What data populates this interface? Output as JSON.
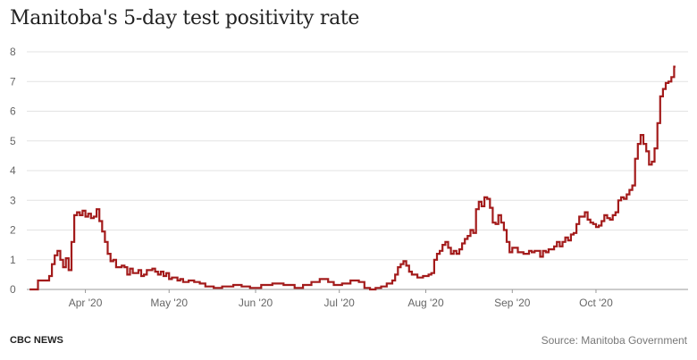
{
  "header": {
    "title": "Manitoba's 5-day test positivity rate"
  },
  "footer": {
    "brand": "CBC NEWS",
    "source": "Source: Manitoba Government"
  },
  "chart_data": {
    "type": "line",
    "step": true,
    "title": "Manitoba's 5-day test positivity rate",
    "xlabel": "",
    "ylabel": "",
    "ylim": [
      0,
      8
    ],
    "yticks": [
      0,
      1,
      2,
      3,
      4,
      5,
      6,
      7,
      8
    ],
    "xlim": [
      "2020-03-11",
      "2020-11-03"
    ],
    "xticks": [
      {
        "label": "Apr '20",
        "date": "2020-04-01"
      },
      {
        "label": "May '20",
        "date": "2020-05-01"
      },
      {
        "label": "Jun '20",
        "date": "2020-06-01"
      },
      {
        "label": "Jul '20",
        "date": "2020-07-01"
      },
      {
        "label": "Aug '20",
        "date": "2020-08-01"
      },
      {
        "label": "Sep '20",
        "date": "2020-09-01"
      },
      {
        "label": "Oct '20",
        "date": "2020-10-01"
      }
    ],
    "grid": true,
    "line_color": "#a31b1b",
    "series": [
      {
        "x": [
          "2020-03-12",
          "2020-03-15",
          "2020-03-19",
          "2020-03-20",
          "2020-03-21",
          "2020-03-22",
          "2020-03-23",
          "2020-03-24",
          "2020-03-25",
          "2020-03-26",
          "2020-03-27",
          "2020-03-28",
          "2020-03-29",
          "2020-03-30",
          "2020-03-31",
          "2020-04-01",
          "2020-04-02",
          "2020-04-03",
          "2020-04-04",
          "2020-04-05",
          "2020-04-06",
          "2020-04-07",
          "2020-04-08",
          "2020-04-09",
          "2020-04-10",
          "2020-04-11",
          "2020-04-12",
          "2020-04-13",
          "2020-04-14",
          "2020-04-15",
          "2020-04-16",
          "2020-04-17",
          "2020-04-18",
          "2020-04-20",
          "2020-04-21",
          "2020-04-22",
          "2020-04-23",
          "2020-04-25",
          "2020-04-26",
          "2020-04-27",
          "2020-04-28",
          "2020-04-29",
          "2020-04-30",
          "2020-05-01",
          "2020-05-02",
          "2020-05-04",
          "2020-05-05",
          "2020-05-06",
          "2020-05-08",
          "2020-05-10",
          "2020-05-12",
          "2020-05-14",
          "2020-05-17",
          "2020-05-20",
          "2020-05-24",
          "2020-05-27",
          "2020-05-30",
          "2020-06-03",
          "2020-06-07",
          "2020-06-11",
          "2020-06-15",
          "2020-06-18",
          "2020-06-21",
          "2020-06-24",
          "2020-06-27",
          "2020-06-29",
          "2020-07-02",
          "2020-07-05",
          "2020-07-08",
          "2020-07-10",
          "2020-07-12",
          "2020-07-14",
          "2020-07-16",
          "2020-07-18",
          "2020-07-20",
          "2020-07-21",
          "2020-07-22",
          "2020-07-23",
          "2020-07-24",
          "2020-07-25",
          "2020-07-26",
          "2020-07-27",
          "2020-07-29",
          "2020-07-31",
          "2020-08-02",
          "2020-08-03",
          "2020-08-04",
          "2020-08-05",
          "2020-08-06",
          "2020-08-07",
          "2020-08-08",
          "2020-08-09",
          "2020-08-10",
          "2020-08-11",
          "2020-08-12",
          "2020-08-13",
          "2020-08-14",
          "2020-08-15",
          "2020-08-16",
          "2020-08-17",
          "2020-08-18",
          "2020-08-19",
          "2020-08-20",
          "2020-08-21",
          "2020-08-22",
          "2020-08-23",
          "2020-08-24",
          "2020-08-25",
          "2020-08-26",
          "2020-08-27",
          "2020-08-28",
          "2020-08-29",
          "2020-08-30",
          "2020-08-31",
          "2020-09-01",
          "2020-09-03",
          "2020-09-05",
          "2020-09-07",
          "2020-09-08",
          "2020-09-09",
          "2020-09-11",
          "2020-09-12",
          "2020-09-13",
          "2020-09-14",
          "2020-09-16",
          "2020-09-17",
          "2020-09-18",
          "2020-09-19",
          "2020-09-20",
          "2020-09-21",
          "2020-09-22",
          "2020-09-23",
          "2020-09-24",
          "2020-09-25",
          "2020-09-27",
          "2020-09-28",
          "2020-09-29",
          "2020-09-30",
          "2020-10-01",
          "2020-10-02",
          "2020-10-03",
          "2020-10-04",
          "2020-10-05",
          "2020-10-06",
          "2020-10-07",
          "2020-10-08",
          "2020-10-09",
          "2020-10-10",
          "2020-10-11",
          "2020-10-12",
          "2020-10-13",
          "2020-10-14",
          "2020-10-15",
          "2020-10-16",
          "2020-10-17",
          "2020-10-18",
          "2020-10-19",
          "2020-10-20",
          "2020-10-21",
          "2020-10-22",
          "2020-10-23",
          "2020-10-24",
          "2020-10-25",
          "2020-10-26",
          "2020-10-27",
          "2020-10-28",
          "2020-10-29"
        ],
        "y": [
          0,
          0.3,
          0.45,
          0.85,
          1.15,
          1.3,
          1.0,
          0.75,
          1.05,
          0.65,
          1.6,
          2.5,
          2.6,
          2.5,
          2.65,
          2.45,
          2.55,
          2.4,
          2.45,
          2.7,
          2.3,
          1.95,
          1.6,
          1.2,
          0.95,
          1.0,
          0.75,
          0.75,
          0.8,
          0.75,
          0.5,
          0.7,
          0.55,
          0.65,
          0.45,
          0.5,
          0.65,
          0.7,
          0.6,
          0.5,
          0.6,
          0.45,
          0.55,
          0.35,
          0.4,
          0.3,
          0.35,
          0.25,
          0.3,
          0.25,
          0.2,
          0.1,
          0.05,
          0.1,
          0.15,
          0.1,
          0.05,
          0.15,
          0.2,
          0.15,
          0.05,
          0.15,
          0.25,
          0.35,
          0.25,
          0.15,
          0.2,
          0.3,
          0.25,
          0.05,
          0,
          0.05,
          0.1,
          0.2,
          0.3,
          0.5,
          0.75,
          0.85,
          0.95,
          0.8,
          0.6,
          0.5,
          0.4,
          0.45,
          0.5,
          0.55,
          1.0,
          1.2,
          1.3,
          1.5,
          1.6,
          1.4,
          1.2,
          1.3,
          1.2,
          1.35,
          1.55,
          1.7,
          1.8,
          2.0,
          1.9,
          2.7,
          2.95,
          2.8,
          3.1,
          3.05,
          2.75,
          2.25,
          2.2,
          2.5,
          2.25,
          2.0,
          1.6,
          1.25,
          1.4,
          1.25,
          1.2,
          1.3,
          1.25,
          1.3,
          1.1,
          1.3,
          1.25,
          1.35,
          1.45,
          1.6,
          1.45,
          1.6,
          1.75,
          1.65,
          1.85,
          1.9,
          2.2,
          2.45,
          2.6,
          2.35,
          2.25,
          2.2,
          2.1,
          2.15,
          2.3,
          2.5,
          2.4,
          2.35,
          2.5,
          2.6,
          3.0,
          3.1,
          3.05,
          3.2,
          3.35,
          3.5,
          4.4,
          4.9,
          5.2,
          4.9,
          4.65,
          4.2,
          4.3,
          4.75,
          5.6,
          6.5,
          6.75,
          6.95,
          7.0,
          7.15,
          7.5
        ]
      }
    ]
  }
}
